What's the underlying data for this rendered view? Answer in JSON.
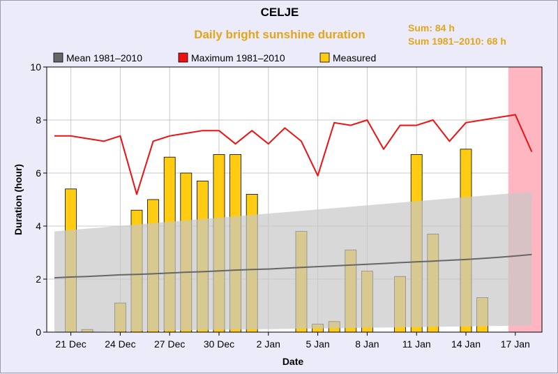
{
  "title": "CELJE",
  "subtitle": "Daily bright sunshine duration",
  "sums": {
    "measured": "Sum: 84 h",
    "mean": "Sum 1981–2010: 68 h"
  },
  "colors": {
    "mean": "#666666",
    "max": "#ee1111",
    "measured": "#ffcc11",
    "band": "#c8c8c8",
    "highlight": "#ffb6c1"
  },
  "chart_data": {
    "type": "bar",
    "title": "CELJE",
    "subtitle": "Daily bright sunshine duration",
    "xlabel": "Date",
    "ylabel": "Duration (hour)",
    "ylim": [
      0,
      10
    ],
    "yticks": [
      "0",
      "2",
      "4",
      "6",
      "8",
      "10"
    ],
    "grid": true,
    "legend_position": "top",
    "legend": [
      "Mean 1981–2010",
      "Maximum 1981–2010",
      "Measured"
    ],
    "xtick_labels": [
      "21 Dec",
      "24 Dec",
      "27 Dec",
      "30 Dec",
      "2 Jan",
      "5 Jan",
      "8 Jan",
      "11 Jan",
      "14 Jan",
      "17 Jan"
    ],
    "days": [
      "20 Dec",
      "21 Dec",
      "22 Dec",
      "23 Dec",
      "24 Dec",
      "25 Dec",
      "26 Dec",
      "27 Dec",
      "28 Dec",
      "29 Dec",
      "30 Dec",
      "31 Dec",
      "1 Jan",
      "2 Jan",
      "3 Jan",
      "4 Jan",
      "5 Jan",
      "6 Jan",
      "7 Jan",
      "8 Jan",
      "9 Jan",
      "10 Jan",
      "11 Jan",
      "12 Jan",
      "13 Jan",
      "14 Jan",
      "15 Jan",
      "16 Jan",
      "17 Jan",
      "18 Jan"
    ],
    "series": [
      {
        "name": "Measured",
        "kind": "bar",
        "values": [
          null,
          5.4,
          0.1,
          0.0,
          1.1,
          4.6,
          5.0,
          6.6,
          6.0,
          5.7,
          6.7,
          6.7,
          5.2,
          0.0,
          0.0,
          3.8,
          0.3,
          0.4,
          3.1,
          2.3,
          0.0,
          2.1,
          6.7,
          3.7,
          0.0,
          6.9,
          1.3,
          null,
          null,
          null
        ]
      },
      {
        "name": "Maximum 1981–2010",
        "kind": "line",
        "values": [
          7.4,
          7.4,
          7.3,
          7.2,
          7.4,
          5.2,
          7.2,
          7.4,
          7.5,
          7.6,
          7.6,
          7.1,
          7.6,
          7.1,
          7.7,
          7.2,
          5.9,
          7.9,
          7.8,
          8.0,
          6.9,
          7.8,
          7.8,
          8.0,
          7.2,
          7.9,
          null,
          null,
          8.2,
          6.8
        ]
      },
      {
        "name": "Mean 1981–2010",
        "kind": "line",
        "values": [
          2.05,
          2.08,
          2.1,
          2.13,
          2.16,
          2.18,
          2.2,
          2.23,
          2.26,
          2.28,
          2.31,
          2.34,
          2.36,
          2.38,
          2.41,
          2.44,
          2.47,
          2.5,
          2.53,
          2.56,
          2.59,
          2.62,
          2.65,
          2.68,
          2.71,
          2.74,
          2.78,
          2.82,
          2.87,
          2.93
        ]
      }
    ],
    "band": {
      "upper_start": 3.8,
      "upper_end": 5.3,
      "lower_start": 0.0,
      "lower_end": 0.25
    },
    "highlight_days": [
      "17 Jan",
      "18 Jan"
    ]
  }
}
